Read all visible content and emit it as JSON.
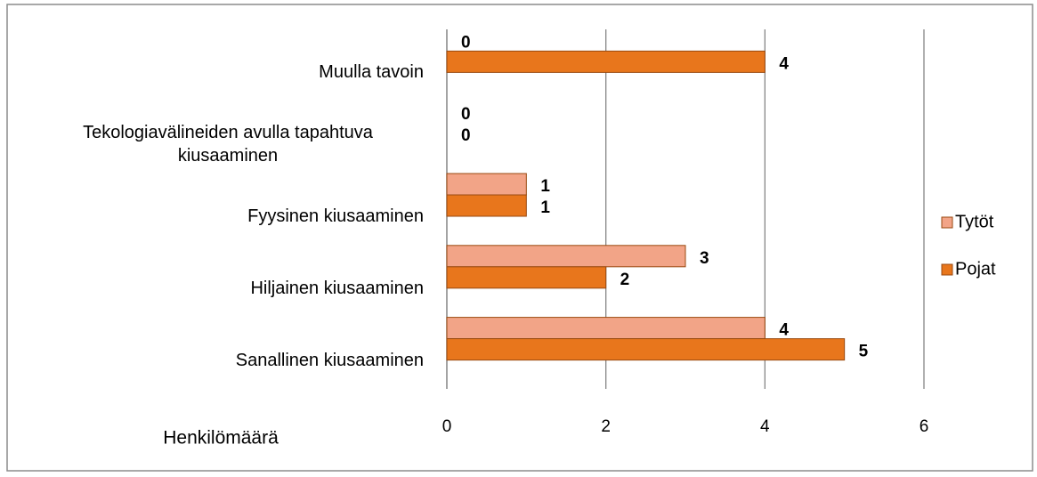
{
  "chart_data": {
    "type": "bar",
    "orientation": "horizontal",
    "categories": [
      "Sanallinen kiusaaminen",
      "Hiljainen kiusaaminen",
      "Fyysinen kiusaaminen",
      "Tekologiavälineiden avulla tapahtuva kiusaaminen",
      "Muulla tavoin"
    ],
    "series": [
      {
        "name": "Tytöt",
        "color": "#f2a487",
        "values": [
          4,
          3,
          1,
          0,
          0
        ]
      },
      {
        "name": "Pojat",
        "color": "#e8761c",
        "values": [
          5,
          2,
          1,
          0,
          4
        ]
      }
    ],
    "xlabel": "Henkilömäärä",
    "xlim": [
      0,
      6
    ],
    "xticks": [
      0,
      2,
      4,
      6
    ],
    "grid": true,
    "legend": "right"
  }
}
